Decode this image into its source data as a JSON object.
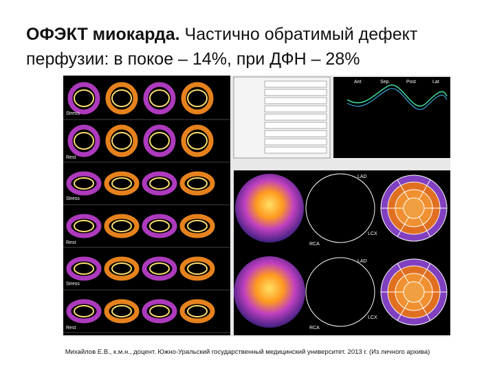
{
  "header": {
    "title_bold": "ОФЭКТ миокарда.",
    "title_line1_rest": "Частично обратимый  дефект",
    "title_line2": "перфузии: в покое – 14%, при ДФН – 28%"
  },
  "image_labels": {
    "stress": "Stress",
    "rest": "Rest",
    "lad": "LAD",
    "lcx": "LCX",
    "rca": "RCA",
    "graph_axis": [
      "Ant",
      "Sep.",
      "Post",
      "Lat"
    ]
  },
  "caption": "Михайлов Е.В., к.м.н., доцент. Южно-Уральский государственный медицинский университет. 2013 г. (Из личного архива)"
}
